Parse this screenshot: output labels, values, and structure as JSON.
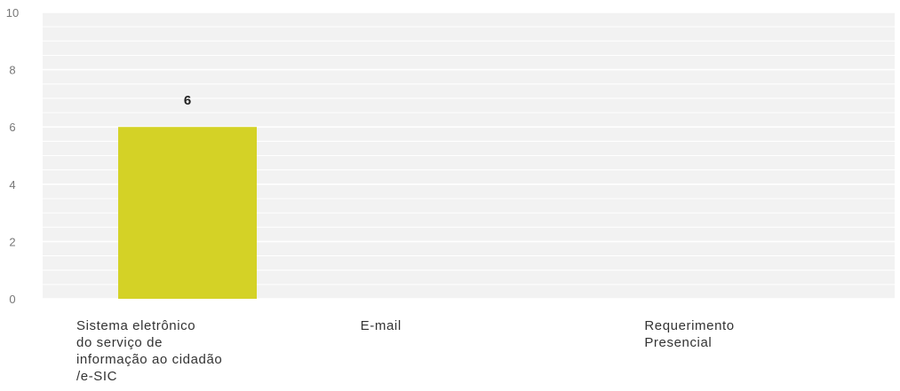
{
  "chart_data": {
    "type": "bar",
    "categories": [
      [
        "Sistema eletrônico",
        "do serviço de",
        "informação ao cidadão",
        "/e-SIC"
      ],
      [
        "E-mail"
      ],
      [
        "Requerimento",
        "Presencial"
      ]
    ],
    "values": [
      6,
      0,
      0
    ],
    "data_labels": [
      "6",
      "",
      ""
    ],
    "ylim": [
      0,
      10
    ],
    "yticks": [
      0,
      2,
      4,
      6,
      8,
      10
    ],
    "grid": true,
    "legend": "none",
    "colors": {
      "bar": "#d4d226",
      "plot_background": "#f2f2f2",
      "grid": "#ffffff"
    }
  }
}
